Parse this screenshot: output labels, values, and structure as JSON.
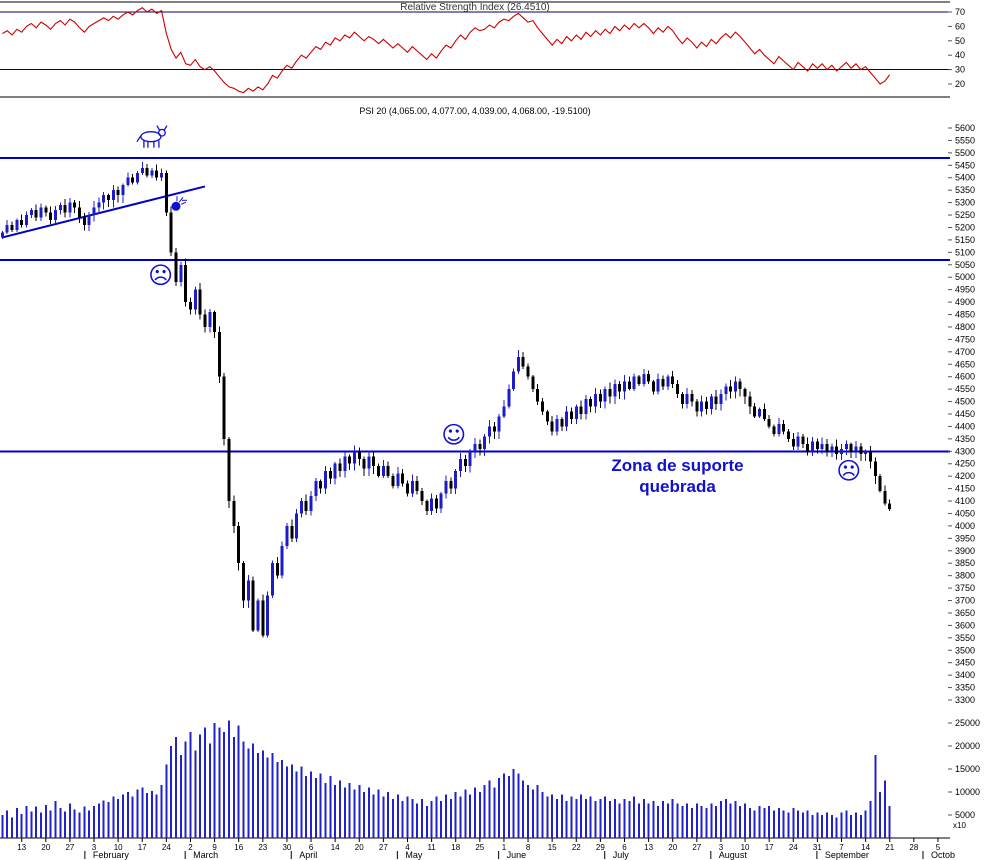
{
  "colors": {
    "background": "#ffffff",
    "rsi_line": "#cc0000",
    "candle_up": "#1d1dc8",
    "candle_down": "#000000",
    "volume_bar": "#2222cc",
    "level_line": "#0000cc",
    "threshold_line": "#000066",
    "annotation_blue": "#1010d0",
    "axis_text": "#000000"
  },
  "rsi_panel": {
    "title": "Relative Strength Index (26.4510)"
  },
  "price_panel": {
    "title": "PSI 20 (4,065.00, 4,077.00, 4,039.00, 4,068.00, -19.5100)",
    "annotations": {
      "bull_icon": {
        "day": 31,
        "price": 5565
      },
      "bomb_icon": {
        "day": 36,
        "price": 5285
      },
      "sad_face_1": {
        "glyph": "☹",
        "day": 32.8,
        "price": 5010
      },
      "happy_face": {
        "glyph": "☺",
        "day": 93.6,
        "price": 4370
      },
      "sad_face_2": {
        "glyph": "☹",
        "day": 175.5,
        "price": 4225
      },
      "support_note": {
        "line1": "Zona de suporte",
        "line2": "quebrada",
        "day": 140,
        "price": 4220
      }
    }
  },
  "chart_data": {
    "type": "candlestick",
    "symbol": "PSI 20",
    "quote": {
      "open": 4065.0,
      "high": 4077.0,
      "low": 4039.0,
      "close": 4068.0,
      "change": -19.51
    },
    "price_axis": {
      "min": 3300,
      "max": 5600,
      "step": 50
    },
    "rsi_axis": {
      "ticks": [
        70,
        60,
        50,
        40,
        30,
        20
      ],
      "lines": [
        70,
        30
      ]
    },
    "volume_axis": {
      "ticks": [
        25000,
        20000,
        15000,
        10000,
        5000
      ],
      "multiplier": "x10"
    },
    "support_resistance": [
      5480,
      5070,
      4300
    ],
    "trendline": {
      "from": {
        "day": 0,
        "price": 5160
      },
      "to": {
        "day": 42,
        "price": 5365
      }
    },
    "rsi": {
      "name": "Relative Strength Index",
      "current": 26.451,
      "values": [
        55,
        57,
        54,
        58,
        56,
        60,
        62,
        59,
        63,
        61,
        58,
        62,
        64,
        61,
        65,
        63,
        59,
        56,
        60,
        62,
        64,
        66,
        64,
        67,
        65,
        68,
        70,
        68,
        71,
        73,
        70,
        72,
        69,
        71,
        55,
        44,
        38,
        42,
        34,
        33,
        37,
        32,
        30,
        32,
        29,
        25,
        21,
        18,
        17,
        15,
        14,
        17,
        15,
        18,
        16,
        20,
        26,
        24,
        29,
        33,
        31,
        36,
        40,
        38,
        42,
        46,
        44,
        49,
        47,
        52,
        50,
        54,
        52,
        56,
        53,
        50,
        53,
        51,
        48,
        51,
        48,
        45,
        48,
        45,
        42,
        46,
        43,
        40,
        37,
        41,
        38,
        43,
        47,
        45,
        50,
        54,
        51,
        56,
        59,
        57,
        58,
        61,
        59,
        63,
        65,
        64,
        67,
        69,
        66,
        63,
        64,
        59,
        55,
        51,
        47,
        51,
        48,
        53,
        50,
        54,
        51,
        56,
        53,
        57,
        54,
        58,
        55,
        60,
        57,
        61,
        58,
        62,
        59,
        62,
        59,
        55,
        59,
        56,
        60,
        57,
        52,
        48,
        52,
        49,
        45,
        49,
        46,
        51,
        48,
        52,
        55,
        52,
        56,
        53,
        49,
        45,
        41,
        44,
        40,
        37,
        34,
        39,
        36,
        33,
        30,
        35,
        32,
        29,
        34,
        31,
        34,
        30,
        33,
        29,
        32,
        35,
        31,
        34,
        30,
        32,
        28,
        24,
        20,
        22,
        26.45
      ]
    },
    "closes": [
      5180,
      5210,
      5190,
      5230,
      5210,
      5250,
      5270,
      5240,
      5280,
      5260,
      5230,
      5270,
      5290,
      5260,
      5300,
      5280,
      5240,
      5210,
      5250,
      5280,
      5300,
      5330,
      5310,
      5350,
      5330,
      5370,
      5400,
      5380,
      5420,
      5440,
      5410,
      5430,
      5400,
      5420,
      5260,
      5100,
      4980,
      5050,
      4900,
      4870,
      4950,
      4850,
      4800,
      4860,
      4780,
      4600,
      4350,
      4100,
      4000,
      3850,
      3700,
      3780,
      3580,
      3700,
      3560,
      3720,
      3850,
      3800,
      3920,
      4000,
      3950,
      4050,
      4100,
      4060,
      4120,
      4180,
      4150,
      4220,
      4190,
      4250,
      4220,
      4280,
      4250,
      4300,
      4270,
      4230,
      4280,
      4240,
      4200,
      4240,
      4200,
      4160,
      4210,
      4170,
      4130,
      4180,
      4140,
      4100,
      4060,
      4110,
      4070,
      4130,
      4180,
      4150,
      4220,
      4270,
      4240,
      4300,
      4330,
      4310,
      4360,
      4400,
      4380,
      4440,
      4480,
      4550,
      4620,
      4680,
      4640,
      4600,
      4550,
      4500,
      4460,
      4420,
      4380,
      4430,
      4400,
      4460,
      4430,
      4480,
      4450,
      4510,
      4480,
      4530,
      4500,
      4550,
      4520,
      4570,
      4540,
      4580,
      4550,
      4600,
      4570,
      4610,
      4580,
      4540,
      4590,
      4560,
      4600,
      4570,
      4530,
      4490,
      4530,
      4500,
      4460,
      4500,
      4470,
      4520,
      4490,
      4530,
      4560,
      4540,
      4580,
      4550,
      4520,
      4480,
      4440,
      4470,
      4430,
      4400,
      4370,
      4410,
      4380,
      4350,
      4320,
      4360,
      4330,
      4300,
      4340,
      4310,
      4330,
      4300,
      4320,
      4290,
      4310,
      4330,
      4300,
      4320,
      4290,
      4300,
      4260,
      4200,
      4140,
      4090,
      4068
    ],
    "volumes": [
      5000,
      6000,
      4500,
      6500,
      5200,
      7000,
      5800,
      6800,
      5500,
      7200,
      6000,
      8000,
      6500,
      5800,
      7500,
      6200,
      5500,
      6800,
      6000,
      7000,
      7500,
      8200,
      7800,
      9000,
      8500,
      9500,
      10000,
      9000,
      10500,
      11000,
      9800,
      10200,
      9500,
      11500,
      16000,
      20000,
      22000,
      18000,
      21000,
      23000,
      19000,
      22500,
      24000,
      20500,
      25000,
      24000,
      23000,
      25500,
      22000,
      24500,
      21000,
      19500,
      20500,
      18500,
      19000,
      17500,
      18500,
      16500,
      17000,
      15500,
      16000,
      14500,
      15500,
      13500,
      14500,
      13000,
      14000,
      12000,
      13500,
      11500,
      12500,
      11000,
      12000,
      10500,
      11500,
      10000,
      11000,
      9500,
      10500,
      9000,
      10000,
      8500,
      9500,
      8000,
      9000,
      8500,
      7500,
      8500,
      7000,
      8000,
      9000,
      8000,
      9500,
      8500,
      10000,
      9000,
      10500,
      9500,
      11000,
      10000,
      11500,
      12500,
      11000,
      13000,
      14000,
      13500,
      15000,
      14000,
      12500,
      11500,
      10500,
      11500,
      10000,
      9000,
      9500,
      8500,
      9500,
      8000,
      9000,
      8500,
      9500,
      8500,
      9000,
      8000,
      8500,
      9000,
      8000,
      8500,
      7500,
      8500,
      8000,
      9000,
      7500,
      8500,
      7500,
      8000,
      7000,
      8000,
      7500,
      8500,
      7500,
      7000,
      7500,
      6500,
      7500,
      7000,
      6500,
      7500,
      7000,
      8000,
      8500,
      7500,
      8000,
      7000,
      7500,
      6500,
      6000,
      7000,
      6500,
      7000,
      6000,
      6500,
      6000,
      5500,
      6500,
      6000,
      5500,
      6000,
      5000,
      5500,
      5000,
      5500,
      5000,
      4500,
      5500,
      6000,
      5000,
      5500,
      5000,
      6000,
      8000,
      18000,
      10000,
      12500,
      7000
    ],
    "week_ticks": [
      {
        "day": 4,
        "label": "13"
      },
      {
        "day": 9,
        "label": "20"
      },
      {
        "day": 14,
        "label": "27"
      },
      {
        "day": 19,
        "label": "3"
      },
      {
        "day": 24,
        "label": "10"
      },
      {
        "day": 29,
        "label": "17"
      },
      {
        "day": 34,
        "label": "24"
      },
      {
        "day": 39,
        "label": "2"
      },
      {
        "day": 44,
        "label": "9"
      },
      {
        "day": 49,
        "label": "16"
      },
      {
        "day": 54,
        "label": "23"
      },
      {
        "day": 59,
        "label": "30"
      },
      {
        "day": 64,
        "label": "6"
      },
      {
        "day": 69,
        "label": "14"
      },
      {
        "day": 74,
        "label": "20"
      },
      {
        "day": 79,
        "label": "27"
      },
      {
        "day": 84,
        "label": "4"
      },
      {
        "day": 89,
        "label": "11"
      },
      {
        "day": 94,
        "label": "18"
      },
      {
        "day": 99,
        "label": "25"
      },
      {
        "day": 104,
        "label": "1"
      },
      {
        "day": 109,
        "label": "8"
      },
      {
        "day": 114,
        "label": "15"
      },
      {
        "day": 119,
        "label": "22"
      },
      {
        "day": 124,
        "label": "29"
      },
      {
        "day": 129,
        "label": "6"
      },
      {
        "day": 134,
        "label": "13"
      },
      {
        "day": 139,
        "label": "20"
      },
      {
        "day": 144,
        "label": "27"
      },
      {
        "day": 149,
        "label": "3"
      },
      {
        "day": 154,
        "label": "10"
      },
      {
        "day": 159,
        "label": "17"
      },
      {
        "day": 164,
        "label": "24"
      },
      {
        "day": 169,
        "label": "31"
      },
      {
        "day": 174,
        "label": "7"
      },
      {
        "day": 179,
        "label": "14"
      },
      {
        "day": 184,
        "label": "21"
      },
      {
        "day": 189,
        "label": "28"
      },
      {
        "day": 194,
        "label": "5"
      }
    ],
    "months": [
      {
        "label": "February",
        "boundary_day": 17.6
      },
      {
        "label": "March",
        "boundary_day": 38.4
      },
      {
        "label": "April",
        "boundary_day": 60.4
      },
      {
        "label": "May",
        "boundary_day": 82.4
      },
      {
        "label": "June",
        "boundary_day": 103.4
      },
      {
        "label": "July",
        "boundary_day": 125.4
      },
      {
        "label": "August",
        "boundary_day": 147.4
      },
      {
        "label": "September",
        "boundary_day": 169.4
      },
      {
        "label": "Octob",
        "boundary_day": 191.4
      }
    ]
  }
}
